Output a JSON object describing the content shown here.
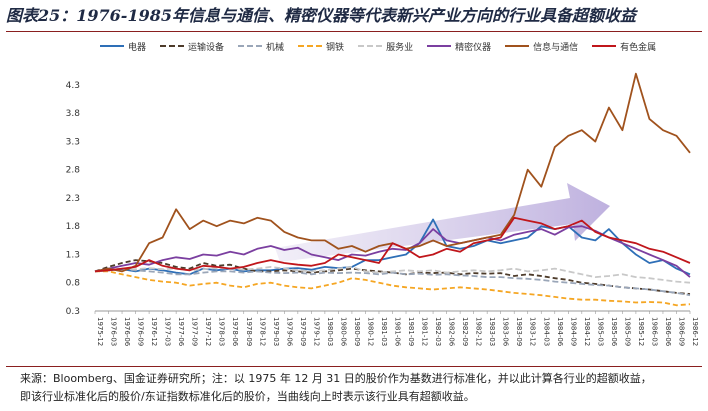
{
  "page": {
    "title": "图表25：1976-1985年信息与通信、精密仪器等代表新兴产业方向的行业具备超额收益",
    "source_line1": "来源：Bloomberg、国金证券研究所；注：以 1975 年 12 月 31 日的股价作为基数进行标准化，并以此计算各行业的超额收益，",
    "source_line2": "即该行业标准化后的股价/东证指数标准化后的股价，当曲线向上时表示该行业具有超额收益。"
  },
  "chart_data": {
    "type": "line",
    "ylim": [
      0.3,
      4.6
    ],
    "yticks": [
      "0.3",
      "0.8",
      "1.3",
      "1.8",
      "2.3",
      "2.8",
      "3.3",
      "3.8",
      "4.3"
    ],
    "x": [
      "1975-12",
      "1976-03",
      "1976-06",
      "1976-09",
      "1976-12",
      "1977-03",
      "1977-06",
      "1977-09",
      "1977-12",
      "1978-03",
      "1978-06",
      "1978-09",
      "1978-12",
      "1979-03",
      "1979-06",
      "1979-09",
      "1979-12",
      "1980-03",
      "1980-06",
      "1980-09",
      "1980-12",
      "1981-03",
      "1981-06",
      "1981-09",
      "1981-12",
      "1982-03",
      "1982-06",
      "1982-09",
      "1982-12",
      "1983-03",
      "1983-06",
      "1983-09",
      "1983-12",
      "1984-03",
      "1984-06",
      "1984-09",
      "1984-12",
      "1985-03",
      "1985-06",
      "1985-09",
      "1985-12",
      "1986-03",
      "1986-06",
      "1986-09",
      "1986-12"
    ],
    "series": [
      {
        "name": "电器",
        "color": "#2e6fb7",
        "dash": "",
        "values": [
          1.0,
          1.02,
          1.04,
          1.0,
          1.05,
          1.02,
          0.98,
          0.95,
          1.05,
          1.02,
          1.05,
          1.0,
          1.02,
          1.02,
          1.05,
          1.06,
          1.03,
          1.08,
          1.06,
          1.08,
          1.2,
          1.2,
          1.25,
          1.3,
          1.5,
          1.92,
          1.45,
          1.4,
          1.45,
          1.55,
          1.5,
          1.55,
          1.6,
          1.8,
          1.75,
          1.8,
          1.6,
          1.55,
          1.75,
          1.5,
          1.3,
          1.15,
          1.2,
          1.05,
          0.95
        ]
      },
      {
        "name": "运输设备",
        "color": "#4d3b2a",
        "dash": "5,3",
        "values": [
          1.0,
          1.08,
          1.15,
          1.2,
          1.18,
          1.15,
          1.08,
          1.05,
          1.15,
          1.1,
          1.12,
          1.05,
          1.0,
          1.0,
          1.02,
          1.0,
          0.98,
          1.0,
          1.02,
          1.05,
          1.02,
          1.0,
          0.98,
          0.95,
          0.98,
          0.97,
          0.98,
          0.95,
          0.97,
          0.96,
          0.97,
          0.92,
          0.95,
          0.92,
          0.88,
          0.85,
          0.8,
          0.78,
          0.75,
          0.72,
          0.7,
          0.68,
          0.65,
          0.62,
          0.6
        ]
      },
      {
        "name": "机械",
        "color": "#9aa6b8",
        "dash": "6,3",
        "values": [
          1.0,
          1.02,
          1.05,
          1.02,
          1.0,
          0.98,
          0.95,
          0.95,
          0.98,
          1.0,
          1.0,
          0.98,
          1.0,
          0.98,
          0.97,
          0.98,
          0.95,
          0.98,
          0.97,
          0.98,
          0.97,
          0.95,
          0.98,
          0.95,
          0.96,
          0.94,
          0.95,
          0.93,
          0.92,
          0.9,
          0.9,
          0.88,
          0.87,
          0.85,
          0.82,
          0.8,
          0.78,
          0.76,
          0.75,
          0.72,
          0.7,
          0.68,
          0.65,
          0.62,
          0.58
        ]
      },
      {
        "name": "钢铁",
        "color": "#f5a623",
        "dash": "5,3",
        "values": [
          1.0,
          1.0,
          0.95,
          0.9,
          0.85,
          0.82,
          0.8,
          0.75,
          0.78,
          0.8,
          0.75,
          0.72,
          0.78,
          0.8,
          0.75,
          0.72,
          0.7,
          0.75,
          0.8,
          0.88,
          0.85,
          0.8,
          0.75,
          0.72,
          0.7,
          0.68,
          0.7,
          0.72,
          0.7,
          0.68,
          0.65,
          0.62,
          0.6,
          0.58,
          0.55,
          0.52,
          0.5,
          0.5,
          0.48,
          0.47,
          0.45,
          0.46,
          0.45,
          0.4,
          0.42
        ]
      },
      {
        "name": "服务业",
        "color": "#c8c8c8",
        "dash": "6,3",
        "values": [
          1.0,
          1.02,
          1.05,
          1.04,
          1.06,
          1.04,
          1.05,
          1.02,
          1.04,
          1.06,
          1.05,
          1.03,
          1.05,
          1.08,
          1.05,
          1.02,
          1.0,
          1.02,
          1.05,
          1.08,
          1.0,
          0.98,
          1.0,
          1.02,
          1.0,
          1.02,
          0.98,
          1.0,
          1.02,
          1.0,
          1.02,
          1.05,
          1.0,
          1.02,
          1.05,
          1.0,
          0.95,
          0.9,
          0.92,
          0.95,
          0.9,
          0.88,
          0.85,
          0.82,
          0.8
        ]
      },
      {
        "name": "精密仪器",
        "color": "#7b3fa0",
        "dash": "",
        "values": [
          1.0,
          1.05,
          1.1,
          1.15,
          1.12,
          1.2,
          1.25,
          1.22,
          1.3,
          1.28,
          1.35,
          1.3,
          1.4,
          1.45,
          1.38,
          1.42,
          1.3,
          1.25,
          1.2,
          1.3,
          1.28,
          1.35,
          1.4,
          1.38,
          1.5,
          1.75,
          1.55,
          1.5,
          1.55,
          1.6,
          1.55,
          1.65,
          1.7,
          1.75,
          1.65,
          1.78,
          1.8,
          1.72,
          1.6,
          1.5,
          1.4,
          1.3,
          1.2,
          1.1,
          0.9
        ]
      },
      {
        "name": "信息与通信",
        "color": "#a0521d",
        "dash": "",
        "values": [
          1.0,
          1.05,
          1.0,
          1.1,
          1.5,
          1.6,
          2.1,
          1.75,
          1.9,
          1.8,
          1.9,
          1.85,
          1.95,
          1.9,
          1.7,
          1.6,
          1.55,
          1.55,
          1.4,
          1.45,
          1.35,
          1.45,
          1.5,
          1.4,
          1.45,
          1.55,
          1.45,
          1.5,
          1.55,
          1.6,
          1.65,
          2.0,
          2.8,
          2.5,
          3.2,
          3.4,
          3.5,
          3.3,
          3.9,
          3.5,
          4.5,
          3.7,
          3.5,
          3.4,
          3.1
        ]
      },
      {
        "name": "有色金属",
        "color": "#c0161b",
        "dash": "",
        "values": [
          1.0,
          1.02,
          1.05,
          1.08,
          1.2,
          1.1,
          1.05,
          1.02,
          1.1,
          1.08,
          1.05,
          1.08,
          1.15,
          1.2,
          1.15,
          1.12,
          1.1,
          1.15,
          1.3,
          1.25,
          1.2,
          1.15,
          1.5,
          1.4,
          1.25,
          1.3,
          1.4,
          1.35,
          1.5,
          1.55,
          1.6,
          1.95,
          1.9,
          1.85,
          1.75,
          1.8,
          1.9,
          1.7,
          1.6,
          1.55,
          1.5,
          1.4,
          1.35,
          1.25,
          1.15
        ]
      }
    ]
  }
}
